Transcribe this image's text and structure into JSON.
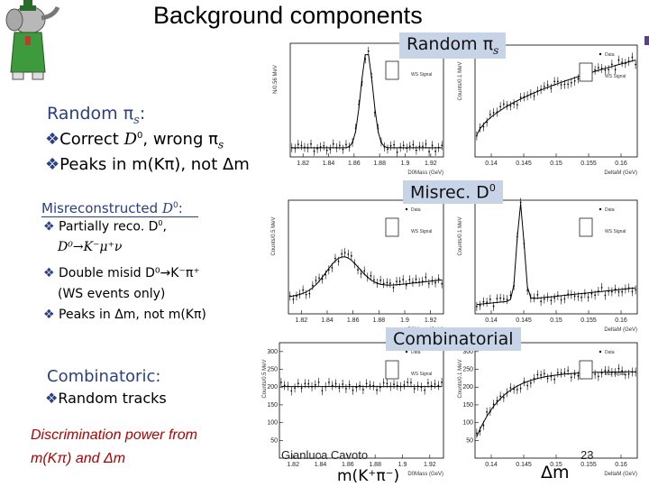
{
  "title": "Background components",
  "tags": {
    "random_pis": "Random π",
    "random_pis_sub": "s",
    "misrec": "Misrec. D",
    "misrec_sup": "0",
    "combinatorial": "Combinatorial"
  },
  "left": {
    "random": {
      "heading": "Random π",
      "heading_sub": "s",
      "heading_end": ":",
      "b1_a": "Correct ",
      "b1_em": "D",
      "b1_sup": "0",
      "b1_b": ", wrong π",
      "b1_sub": "s",
      "b2": "Peaks in m(Kπ), not Δm"
    },
    "misrec": {
      "heading": "Misreconstructed ",
      "heading_em": "D",
      "heading_sup": "0",
      "heading_end": ":",
      "b1": "Partially reco. D",
      "b1_sup": "0",
      "b1_end": ",",
      "decay": "D⁰→K⁻μ⁺ν",
      "b2": "Double misid D⁰→K⁻π⁺",
      "b2_note": "(WS events only)",
      "b3": "Peaks in Δm, not m(Kπ)"
    },
    "combi": {
      "heading": "Combinatoric:",
      "b1": "Random tracks"
    },
    "discrimination_l1": "Discrimination power from",
    "discrimination_l2": "m(Kπ) and Δm"
  },
  "footer": {
    "author": "Gianluca Cavoto",
    "page": "23",
    "mkpi": "m(K⁺π⁻)",
    "dm": "Δm"
  },
  "plots": [
    {
      "name": "d0mass-random",
      "x_ticks": [
        "1.82",
        "1.84",
        "1.86",
        "1.88",
        "1.9",
        "1.92"
      ],
      "y_ticks": [],
      "xlabel": "D0Mass (GeV)",
      "ylabel": "N/0.56 MeV",
      "legend": [
        "Data",
        "WS Signal"
      ]
    },
    {
      "name": "deltam-random",
      "x_ticks": [
        "0.14",
        "0.145",
        "0.15",
        "0.155",
        "0.16"
      ],
      "y_ticks": [],
      "xlabel": "DeltaM (GeV)",
      "ylabel": "Counts/0.1 MeV",
      "legend": [
        "Data",
        "WS Signal"
      ]
    },
    {
      "name": "d0mass-misrec",
      "x_ticks": [
        "1.82",
        "1.84",
        "1.86",
        "1.88",
        "1.9",
        "1.92"
      ],
      "y_ticks": [],
      "xlabel": "D0Mass (GeV)",
      "ylabel": "Counts/0.5 MeV",
      "legend": [
        "Data",
        "WS Signal"
      ]
    },
    {
      "name": "deltam-misrec",
      "x_ticks": [
        "0.14",
        "0.145",
        "0.15",
        "0.155",
        "0.16"
      ],
      "y_ticks": [],
      "xlabel": "DeltaM (GeV)",
      "ylabel": "Counts/0.1 MeV",
      "legend": [
        "Data",
        "WS Signal"
      ]
    },
    {
      "name": "d0mass-combi",
      "x_ticks": [
        "1.82",
        "1.84",
        "1.86",
        "1.88",
        "1.9",
        "1.92"
      ],
      "y_ticks": [
        "50",
        "100",
        "150",
        "200",
        "250",
        "300"
      ],
      "xlabel": "D0Mass (GeV)",
      "ylabel": "Counts/0.5 MeV",
      "legend": [
        "Data",
        "WS Signal"
      ]
    },
    {
      "name": "deltam-combi",
      "x_ticks": [
        "0.14",
        "0.145",
        "0.15",
        "0.155",
        "0.16"
      ],
      "y_ticks": [
        "50",
        "100",
        "150",
        "200",
        "250",
        "300"
      ],
      "xlabel": "DeltaM (GeV)",
      "ylabel": "Counts/0.1 MeV",
      "legend": [
        "Data",
        "WS Signal"
      ]
    }
  ],
  "colors": {
    "heading": "#2b3f83",
    "tag_bg": "#c7d4e8",
    "red_text": "#b00000",
    "accent_square": "#5a3f8a"
  },
  "icons": {
    "logo": "elephant-logo",
    "bullet": "diamond-bullet"
  }
}
